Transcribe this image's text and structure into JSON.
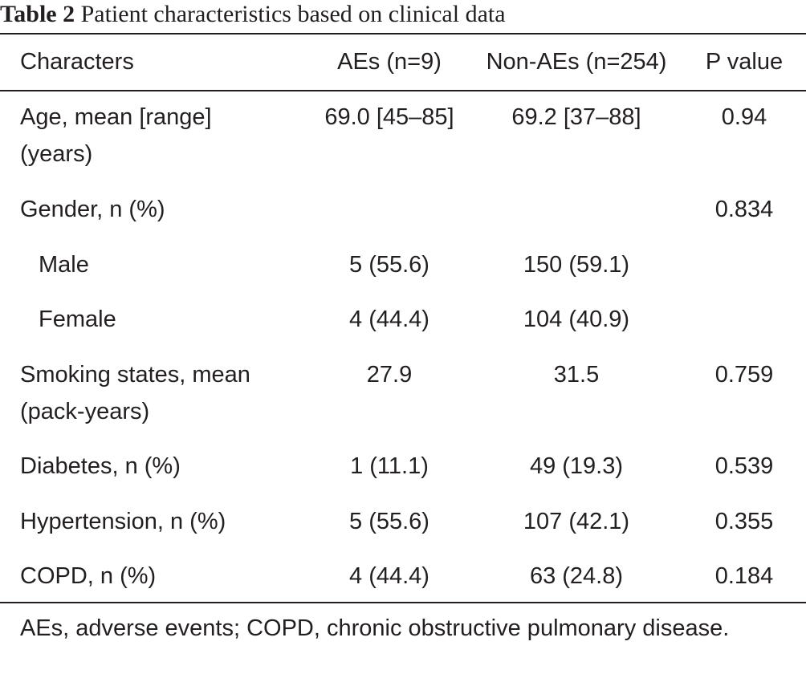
{
  "caption": {
    "label": "Table 2",
    "title": "Patient characteristics based on clinical data"
  },
  "table": {
    "headers": [
      "Characters",
      "AEs (n=9)",
      "Non-AEs (n=254)",
      "P value"
    ],
    "rows": [
      {
        "label": "Age, mean [range]",
        "label_cont": "(years)",
        "aes": "69.0 [45–85]",
        "non_aes": "69.2 [37–88]",
        "p": "0.94"
      },
      {
        "label": "Gender, n (%)",
        "aes": "",
        "non_aes": "",
        "p": "0.834"
      },
      {
        "label": "Male",
        "aes": "5 (55.6)",
        "non_aes": "150 (59.1)",
        "p": ""
      },
      {
        "label": "Female",
        "aes": "4 (44.4)",
        "non_aes": "104 (40.9)",
        "p": ""
      },
      {
        "label": "Smoking states, mean",
        "label_cont": "(pack-years)",
        "aes": "27.9",
        "non_aes": "31.5",
        "p": "0.759"
      },
      {
        "label": "Diabetes, n (%)",
        "aes": "1 (11.1)",
        "non_aes": "49 (19.3)",
        "p": "0.539"
      },
      {
        "label": "Hypertension, n (%)",
        "aes": "5 (55.6)",
        "non_aes": "107 (42.1)",
        "p": "0.355"
      },
      {
        "label": "COPD, n (%)",
        "aes": "4 (44.4)",
        "non_aes": "63 (24.8)",
        "p": "0.184"
      }
    ]
  },
  "footnote": "AEs, adverse events; COPD, chronic obstructive pulmonary disease."
}
